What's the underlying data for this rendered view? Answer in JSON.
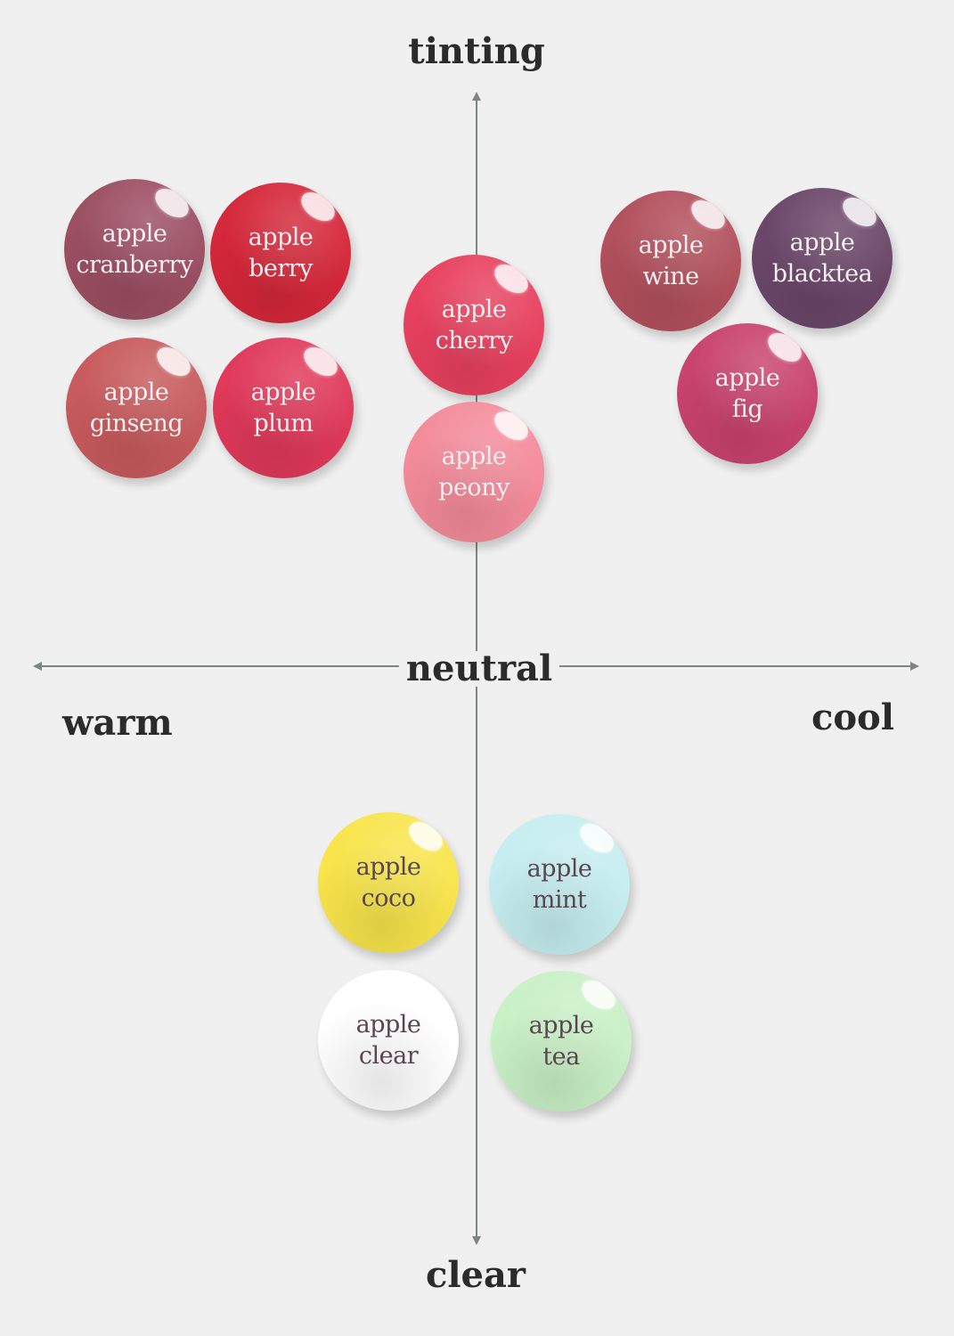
{
  "axes": {
    "top": "tinting",
    "bottom": "clear",
    "center": "neutral",
    "left": "warm",
    "right": "cool"
  },
  "swatches": [
    {
      "line1": "apple",
      "line2": "cranberry",
      "color": "#9c4f63"
    },
    {
      "line1": "apple",
      "line2": "berry",
      "color": "#d5283a"
    },
    {
      "line1": "apple",
      "line2": "ginseng",
      "color": "#c85b5d"
    },
    {
      "line1": "apple",
      "line2": "plum",
      "color": "#e0395a"
    },
    {
      "line1": "apple",
      "line2": "cherry",
      "color": "#e8415f"
    },
    {
      "line1": "apple",
      "line2": "peony",
      "color": "#f48b9b"
    },
    {
      "line1": "apple",
      "line2": "wine",
      "color": "#b2505d"
    },
    {
      "line1": "apple",
      "line2": "blacktea",
      "color": "#6b4769"
    },
    {
      "line1": "apple",
      "line2": "fig",
      "color": "#c9436f"
    },
    {
      "line1": "apple",
      "line2": "coco",
      "color": "#f8e54b"
    },
    {
      "line1": "apple",
      "line2": "mint",
      "color": "#c6eef0"
    },
    {
      "line1": "apple",
      "line2": "clear",
      "color": "#ffffff"
    },
    {
      "line1": "apple",
      "line2": "tea",
      "color": "#c9f1c6"
    }
  ],
  "colors": {
    "background": "#f0f0f0",
    "axis": "#7f8582",
    "label": "#2b2b2b"
  }
}
